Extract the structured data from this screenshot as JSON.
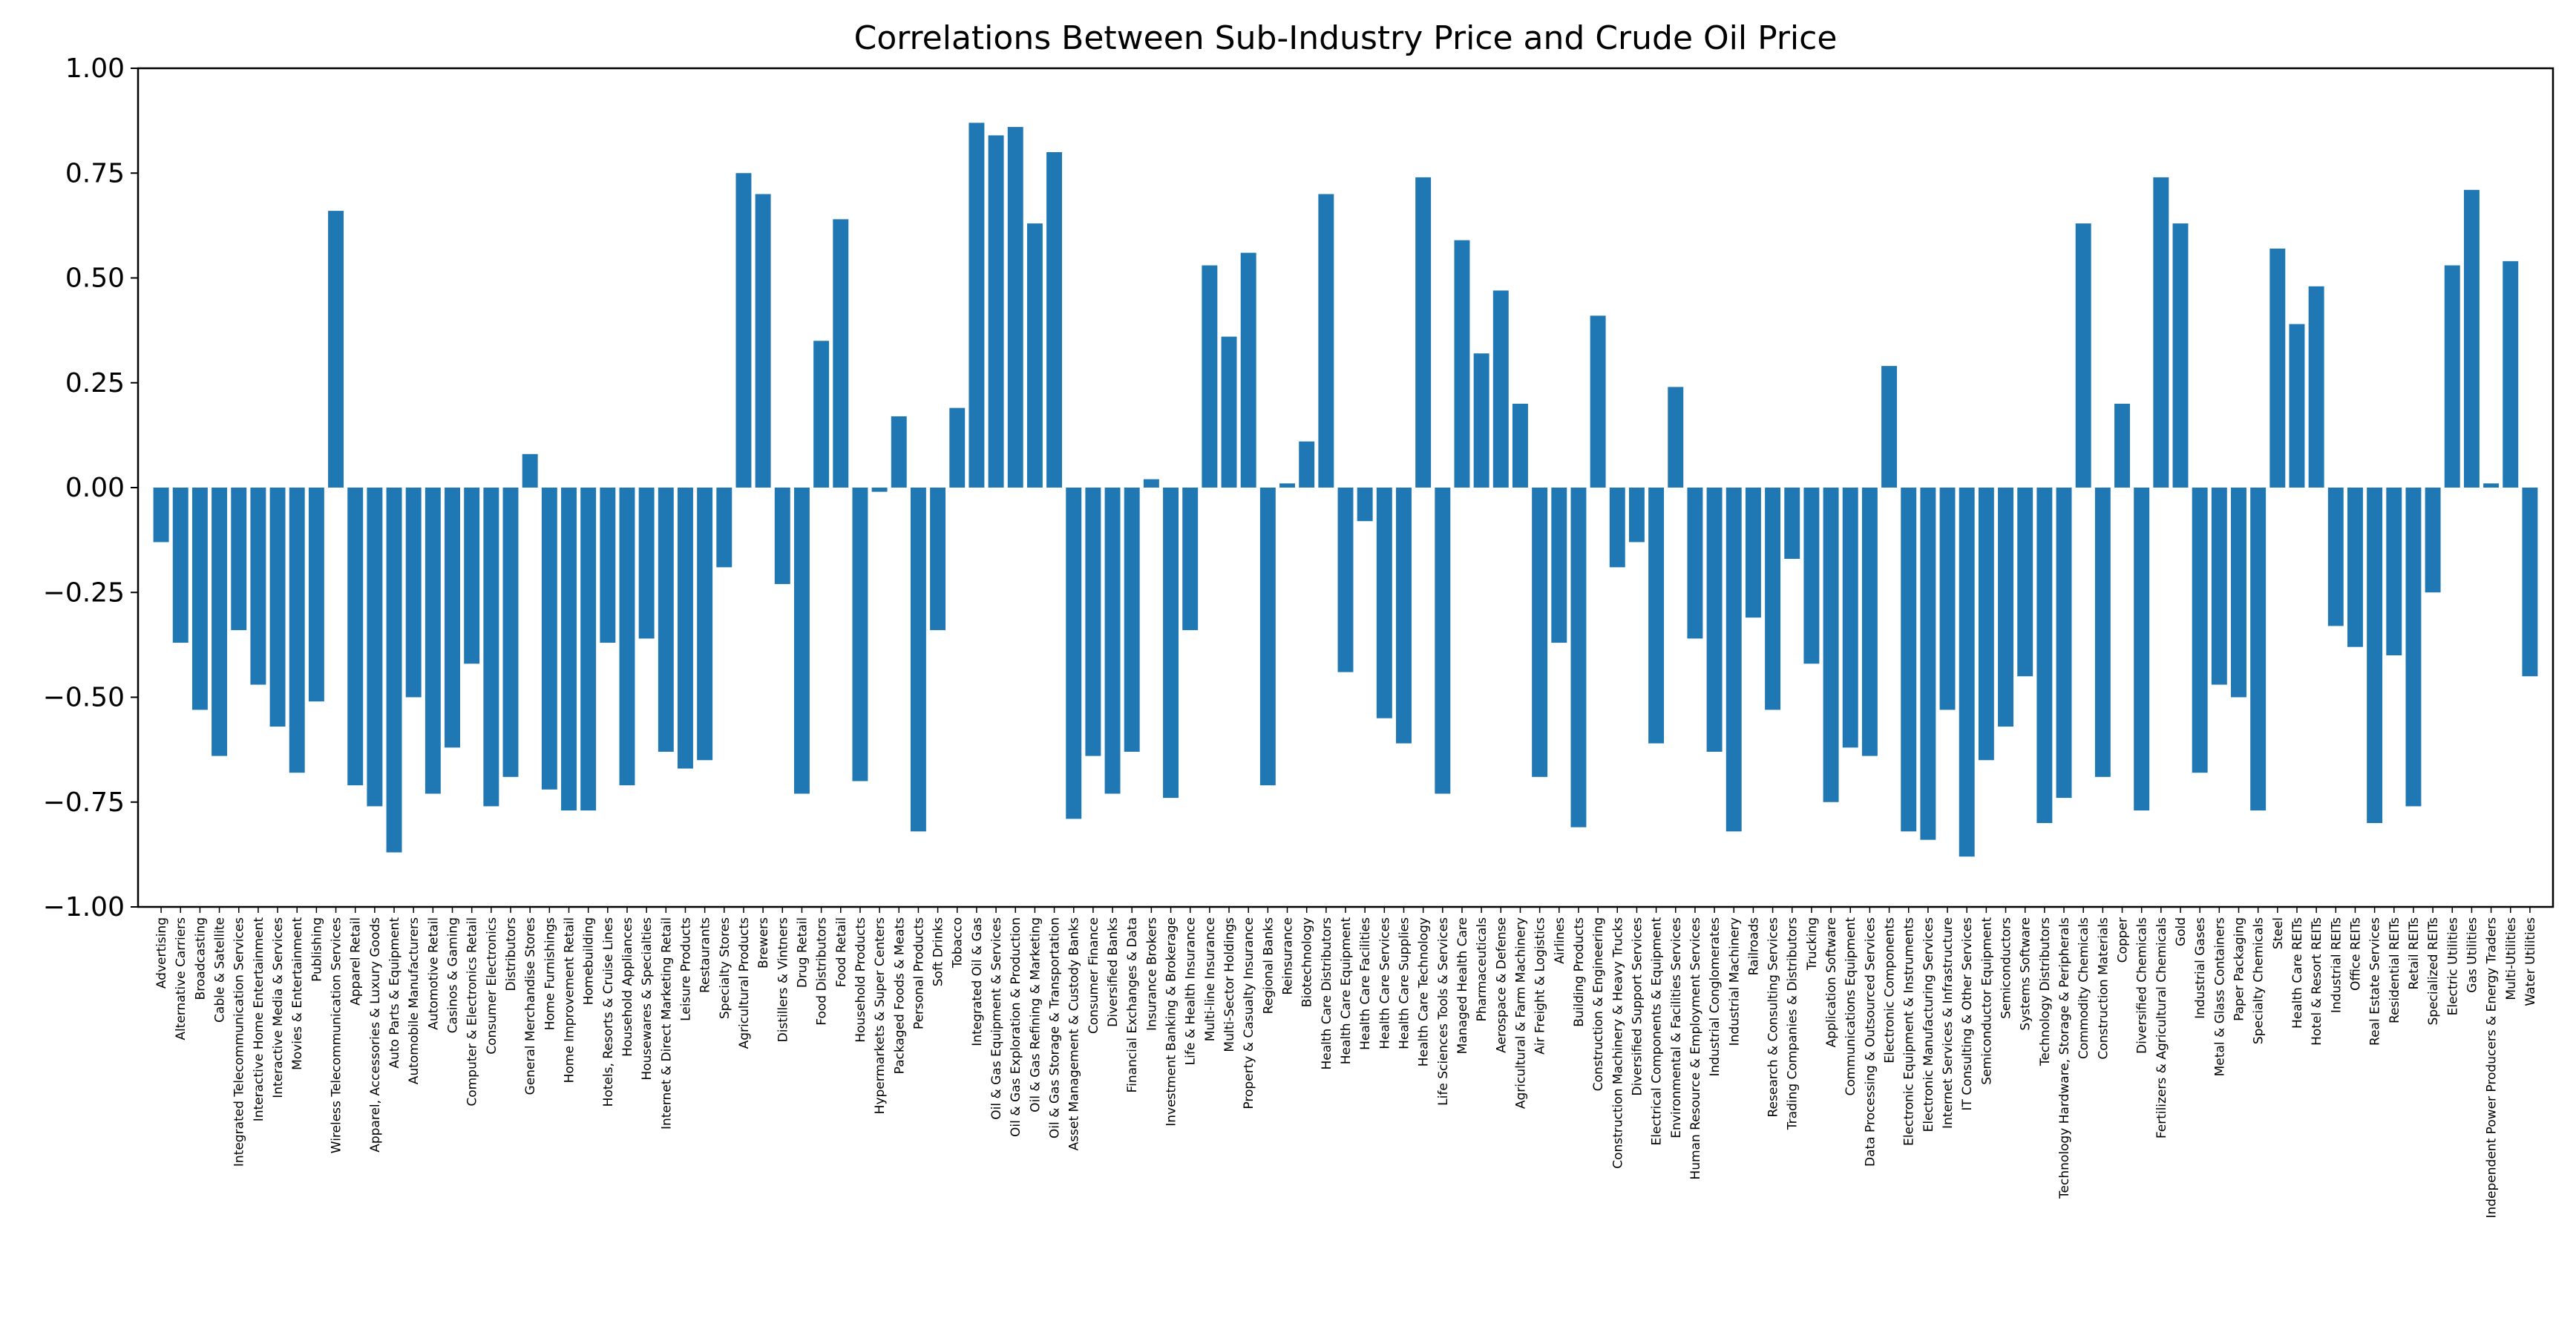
{
  "chart_data": {
    "type": "bar",
    "title": "Correlations Between Sub-Industry Price and Crude Oil Price",
    "xlabel": "",
    "ylabel": "",
    "ylim": [
      -1.0,
      1.0
    ],
    "yticks": [
      -1.0,
      -0.75,
      -0.5,
      -0.25,
      0.0,
      0.25,
      0.5,
      0.75,
      1.0
    ],
    "ytick_labels": [
      "−1.00",
      "−0.75",
      "−0.50",
      "−0.25",
      "0.00",
      "0.25",
      "0.50",
      "0.75",
      "1.00"
    ],
    "grid": false,
    "bar_color": "#1f77b4",
    "categories": [
      "Advertising",
      "Alternative Carriers",
      "Broadcasting",
      "Cable & Satellite",
      "Integrated Telecommunication Services",
      "Interactive Home Entertainment",
      "Interactive Media & Services",
      "Movies & Entertainment",
      "Publishing",
      "Wireless Telecommunication Services",
      "Apparel Retail",
      "Apparel, Accessories & Luxury Goods",
      "Auto Parts & Equipment",
      "Automobile Manufacturers",
      "Automotive Retail",
      "Casinos & Gaming",
      "Computer & Electronics Retail",
      "Consumer Electronics",
      "Distributors",
      "General Merchandise Stores",
      "Home Furnishings",
      "Home Improvement Retail",
      "Homebuilding",
      "Hotels, Resorts & Cruise Lines",
      "Household Appliances",
      "Housewares & Specialties",
      "Internet & Direct Marketing Retail",
      "Leisure Products",
      "Restaurants",
      "Specialty Stores",
      "Agricultural Products",
      "Brewers",
      "Distillers & Vintners",
      "Drug Retail",
      "Food Distributors",
      "Food Retail",
      "Household Products",
      "Hypermarkets & Super Centers",
      "Packaged Foods & Meats",
      "Personal Products",
      "Soft Drinks",
      "Tobacco",
      "Integrated Oil & Gas",
      "Oil & Gas Equipment & Services",
      "Oil & Gas Exploration & Production",
      "Oil & Gas Refining & Marketing",
      "Oil & Gas Storage & Transportation",
      "Asset Management & Custody Banks",
      "Consumer Finance",
      "Diversified Banks",
      "Financial Exchanges & Data",
      "Insurance Brokers",
      "Investment Banking & Brokerage",
      "Life & Health Insurance",
      "Multi-line Insurance",
      "Multi-Sector Holdings",
      "Property & Casualty Insurance",
      "Regional Banks",
      "Reinsurance",
      "Biotechnology",
      "Health Care Distributors",
      "Health Care Equipment",
      "Health Care Facilities",
      "Health Care Services",
      "Health Care Supplies",
      "Health Care Technology",
      "Life Sciences Tools & Services",
      "Managed Health Care",
      "Pharmaceuticals",
      "Aerospace & Defense",
      "Agricultural & Farm Machinery",
      "Air Freight & Logistics",
      "Airlines",
      "Building Products",
      "Construction & Engineering",
      "Construction Machinery & Heavy Trucks",
      "Diversified Support Services",
      "Electrical Components & Equipment",
      "Environmental & Facilities Services",
      "Human Resource & Employment Services",
      "Industrial Conglomerates",
      "Industrial Machinery",
      "Railroads",
      "Research & Consulting Services",
      "Trading Companies & Distributors",
      "Trucking",
      "Application Software",
      "Communications Equipment",
      "Data Processing & Outsourced Services",
      "Electronic Components",
      "Electronic Equipment & Instruments",
      "Electronic Manufacturing Services",
      "Internet Services & Infrastructure",
      "IT Consulting & Other Services",
      "Semiconductor Equipment",
      "Semiconductors",
      "Systems Software",
      "Technology Distributors",
      "Technology Hardware, Storage & Peripherals",
      "Commodity Chemicals",
      "Construction Materials",
      "Copper",
      "Diversified Chemicals",
      "Fertilizers & Agricultural Chemicals",
      "Gold",
      "Industrial Gases",
      "Metal & Glass Containers",
      "Paper Packaging",
      "Specialty Chemicals",
      "Steel",
      "Health Care REITs",
      "Hotel & Resort REITs",
      "Industrial REITs",
      "Office REITs",
      "Real Estate Services",
      "Residential REITs",
      "Retail REITs",
      "Specialized REITs",
      "Electric Utilities",
      "Gas Utilities",
      "Independent Power Producers & Energy Traders",
      "Multi-Utilities",
      "Water Utilities"
    ],
    "values": [
      -0.13,
      -0.37,
      -0.53,
      -0.64,
      -0.34,
      -0.47,
      -0.57,
      -0.68,
      -0.51,
      0.66,
      -0.71,
      -0.76,
      -0.87,
      -0.5,
      -0.73,
      -0.62,
      -0.42,
      -0.76,
      -0.69,
      0.08,
      -0.72,
      -0.77,
      -0.77,
      -0.37,
      -0.71,
      -0.36,
      -0.63,
      -0.67,
      -0.65,
      -0.19,
      0.75,
      0.7,
      -0.23,
      -0.73,
      0.35,
      0.64,
      -0.7,
      -0.01,
      0.17,
      -0.82,
      -0.34,
      0.19,
      0.87,
      0.84,
      0.86,
      0.63,
      0.8,
      -0.79,
      -0.64,
      -0.73,
      -0.63,
      0.02,
      -0.74,
      -0.34,
      0.53,
      0.36,
      0.56,
      -0.71,
      0.01,
      0.11,
      0.7,
      -0.44,
      -0.08,
      -0.55,
      -0.61,
      0.74,
      -0.73,
      0.59,
      0.32,
      0.47,
      0.2,
      -0.69,
      -0.37,
      -0.81,
      0.41,
      -0.19,
      -0.13,
      -0.61,
      0.24,
      -0.36,
      -0.63,
      -0.82,
      -0.31,
      -0.53,
      -0.17,
      -0.42,
      -0.75,
      -0.62,
      -0.64,
      0.29,
      -0.82,
      -0.84,
      -0.53,
      -0.88,
      -0.65,
      -0.57,
      -0.45,
      -0.8,
      -0.74,
      0.63,
      -0.69,
      0.2,
      -0.77,
      0.74,
      0.63,
      -0.68,
      -0.47,
      -0.5,
      -0.77,
      0.57,
      0.39,
      0.48,
      -0.33,
      -0.38,
      -0.8,
      -0.4,
      -0.76,
      -0.25,
      0.53,
      0.71,
      0.01,
      0.54,
      -0.45
    ]
  }
}
